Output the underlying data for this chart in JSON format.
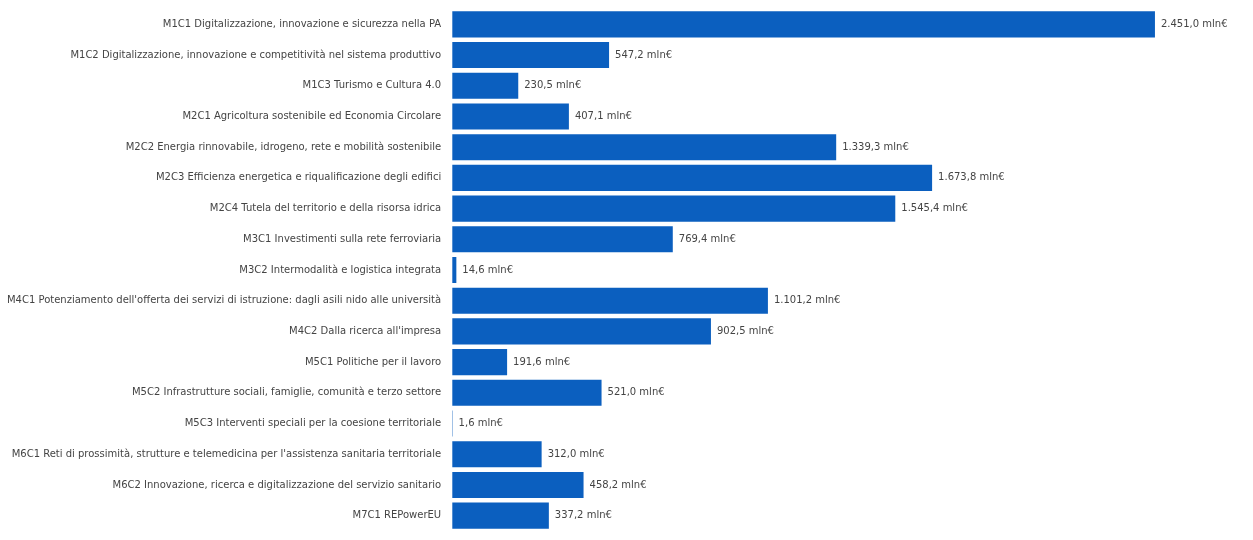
{
  "chart_data": {
    "type": "bar",
    "orientation": "horizontal",
    "tick_labels": "y",
    "legend": false,
    "color": "#0b5fbf",
    "categories": [
      "M1C1 Digitalizzazione, innovazione e sicurezza nella PA",
      "M1C2 Digitalizzazione, innovazione e competitività nel sistema produttivo",
      "M1C3 Turismo e Cultura 4.0",
      "M2C1 Agricoltura sostenibile ed Economia Circolare",
      "M2C2 Energia rinnovabile, idrogeno, rete e mobilità sostenibile",
      "M2C3 Efficienza energetica e riqualificazione degli edifici",
      "M2C4 Tutela del territorio e della risorsa idrica",
      "M3C1 Investimenti sulla rete ferroviaria",
      "M3C2 Intermodalità e logistica integrata",
      "M4C1 Potenziamento dell'offerta dei servizi di istruzione: dagli asili nido alle università",
      "M4C2 Dalla ricerca all'impresa",
      "M5C1 Politiche per il lavoro",
      "M5C2 Infrastrutture sociali, famiglie, comunità e terzo settore",
      "M5C3 Interventi speciali per la coesione territoriale",
      "M6C1 Reti di prossimità, strutture e telemedicina per l'assistenza sanitaria territoriale",
      "M6C2 Innovazione, ricerca e digitalizzazione del servizio sanitario",
      "M7C1 REPowerEU"
    ],
    "values": [
      2451.0,
      547.2,
      230.5,
      407.1,
      1339.3,
      1673.8,
      1545.4,
      769.4,
      14.6,
      1101.2,
      902.5,
      191.6,
      521.0,
      1.6,
      312.0,
      458.2,
      337.2
    ],
    "value_labels": [
      "2.451,0 mln€",
      "547,2 mln€",
      "230,5 mln€",
      "407,1 mln€",
      "1.339,3 mln€",
      "1.673,8 mln€",
      "1.545,4 mln€",
      "769,4 mln€",
      "14,6 mln€",
      "1.101,2 mln€",
      "902,5 mln€",
      "191,6 mln€",
      "521,0 mln€",
      "1,6 mln€",
      "312,0 mln€",
      "458,2 mln€",
      "337,2 mln€"
    ]
  }
}
